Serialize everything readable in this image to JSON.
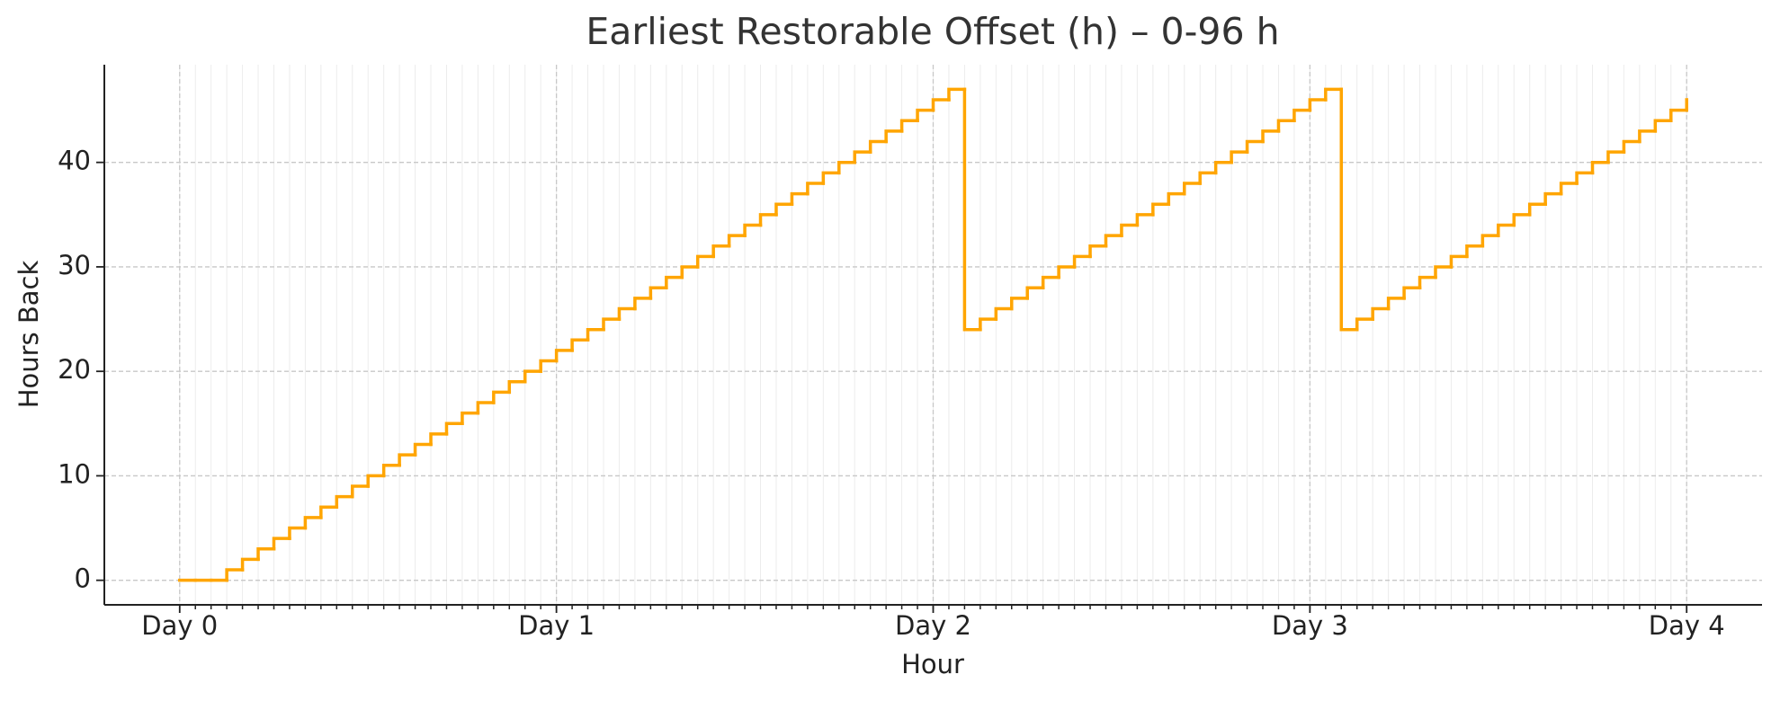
{
  "chart_data": {
    "type": "line",
    "drawstyle": "steps-post",
    "title": "Earliest Restorable Offset (h) – 0-96 h",
    "x_label": "Hour",
    "y_label": "Hours Back",
    "x": [
      0,
      1,
      2,
      3,
      4,
      5,
      6,
      7,
      8,
      9,
      10,
      11,
      12,
      13,
      14,
      15,
      16,
      17,
      18,
      19,
      20,
      21,
      22,
      23,
      24,
      25,
      26,
      27,
      28,
      29,
      30,
      31,
      32,
      33,
      34,
      35,
      36,
      37,
      38,
      39,
      40,
      41,
      42,
      43,
      44,
      45,
      46,
      47,
      48,
      49,
      50,
      51,
      52,
      53,
      54,
      55,
      56,
      57,
      58,
      59,
      60,
      61,
      62,
      63,
      64,
      65,
      66,
      67,
      68,
      69,
      70,
      71,
      72,
      73,
      74,
      75,
      76,
      77,
      78,
      79,
      80,
      81,
      82,
      83,
      84,
      85,
      86,
      87,
      88,
      89,
      90,
      91,
      92,
      93,
      94,
      95,
      96
    ],
    "series": [
      {
        "color": "#ffa500",
        "values": [
          0,
          0,
          0,
          1,
          2,
          3,
          4,
          5,
          6,
          7,
          8,
          9,
          10,
          11,
          12,
          13,
          14,
          15,
          16,
          17,
          18,
          19,
          20,
          21,
          22,
          23,
          24,
          25,
          26,
          27,
          28,
          29,
          30,
          31,
          32,
          33,
          34,
          35,
          36,
          37,
          38,
          39,
          40,
          41,
          42,
          43,
          44,
          45,
          46,
          47,
          24,
          25,
          26,
          27,
          28,
          29,
          30,
          31,
          32,
          33,
          34,
          35,
          36,
          37,
          38,
          39,
          40,
          41,
          42,
          43,
          44,
          45,
          46,
          47,
          24,
          25,
          26,
          27,
          28,
          29,
          30,
          31,
          32,
          33,
          34,
          35,
          36,
          37,
          38,
          39,
          40,
          41,
          42,
          43,
          44,
          45,
          46
        ]
      }
    ],
    "xlim": [
      -4.8,
      100.8
    ],
    "ylim": [
      -2.35,
      49.35
    ],
    "xticks": [
      {
        "value": 0,
        "label": "Day 0"
      },
      {
        "value": 24,
        "label": "Day 1"
      },
      {
        "value": 48,
        "label": "Day 2"
      },
      {
        "value": 72,
        "label": "Day 3"
      },
      {
        "value": 96,
        "label": "Day 4"
      }
    ],
    "yticks": [
      0,
      10,
      20,
      30,
      40
    ],
    "grid": true,
    "minor_grid": true
  }
}
